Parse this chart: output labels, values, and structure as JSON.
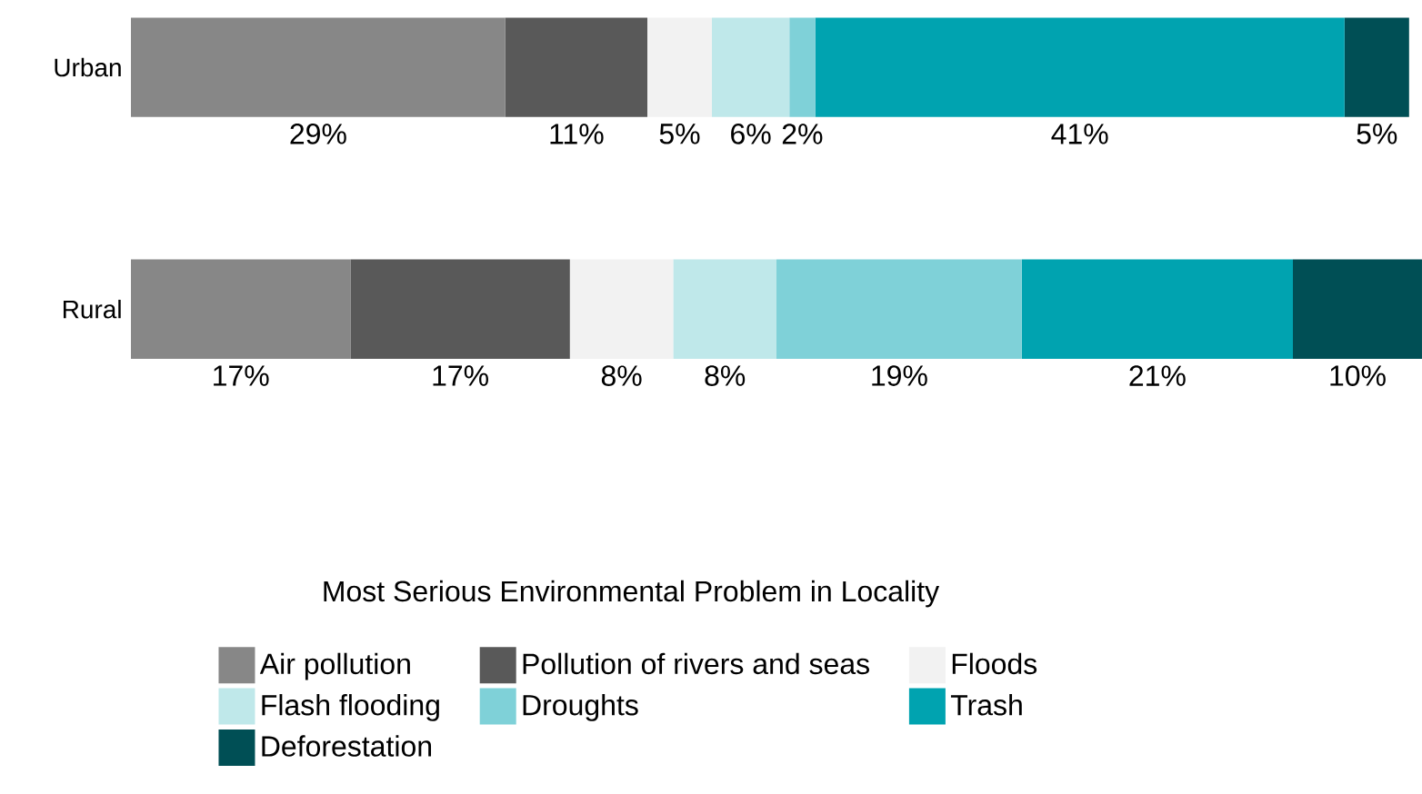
{
  "chart_data": {
    "type": "bar",
    "orientation": "horizontal",
    "stacked": true,
    "categories": [
      "Urban",
      "Rural"
    ],
    "series": [
      {
        "name": "Air pollution",
        "color": "#878787",
        "values": [
          29,
          17
        ],
        "value_labels": [
          "29%",
          "17%"
        ]
      },
      {
        "name": "Pollution of rivers and seas",
        "color": "#595959",
        "values": [
          11,
          17
        ],
        "value_labels": [
          "11%",
          "17%"
        ]
      },
      {
        "name": "Floods",
        "color": "#f2f2f2",
        "values": [
          5,
          8
        ],
        "value_labels": [
          "5%",
          "8%"
        ]
      },
      {
        "name": "Flash flooding",
        "color": "#bfe8ea",
        "values": [
          6,
          8
        ],
        "value_labels": [
          "6%",
          "8%"
        ]
      },
      {
        "name": "Droughts",
        "color": "#7fd1d8",
        "values": [
          2,
          19
        ],
        "value_labels": [
          "2%",
          "19%"
        ]
      },
      {
        "name": "Trash",
        "color": "#00a3b0",
        "values": [
          41,
          21
        ],
        "value_labels": [
          "41%",
          "21%"
        ]
      },
      {
        "name": "Deforestation",
        "color": "#004f55",
        "values": [
          5,
          10
        ],
        "value_labels": [
          "5%",
          "10%"
        ]
      }
    ],
    "legend_title": "Most Serious Environmental Problem in Locality",
    "legend": "bottom",
    "tick_labels": "y",
    "grid": false
  }
}
